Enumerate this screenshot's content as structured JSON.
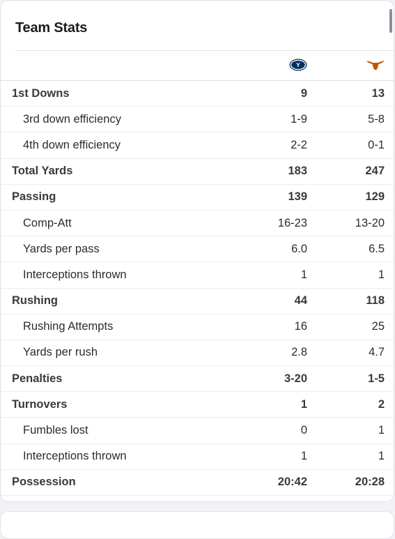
{
  "card": {
    "title": "Team Stats"
  },
  "teams": [
    {
      "name": "byu-logo-icon",
      "color": "#002E5D"
    },
    {
      "name": "texas-longhorn-icon",
      "color": "#BF5700"
    }
  ],
  "rows": [
    {
      "label": "1st Downs",
      "away": "9",
      "home": "13",
      "type": "main"
    },
    {
      "label": "3rd down efficiency",
      "away": "1-9",
      "home": "5-8",
      "type": "sub"
    },
    {
      "label": "4th down efficiency",
      "away": "2-2",
      "home": "0-1",
      "type": "sub"
    },
    {
      "label": "Total Yards",
      "away": "183",
      "home": "247",
      "type": "main"
    },
    {
      "label": "Passing",
      "away": "139",
      "home": "129",
      "type": "main"
    },
    {
      "label": "Comp-Att",
      "away": "16-23",
      "home": "13-20",
      "type": "sub"
    },
    {
      "label": "Yards per pass",
      "away": "6.0",
      "home": "6.5",
      "type": "sub"
    },
    {
      "label": "Interceptions thrown",
      "away": "1",
      "home": "1",
      "type": "sub"
    },
    {
      "label": "Rushing",
      "away": "44",
      "home": "118",
      "type": "main"
    },
    {
      "label": "Rushing Attempts",
      "away": "16",
      "home": "25",
      "type": "sub"
    },
    {
      "label": "Yards per rush",
      "away": "2.8",
      "home": "4.7",
      "type": "sub"
    },
    {
      "label": "Penalties",
      "away": "3-20",
      "home": "1-5",
      "type": "main"
    },
    {
      "label": "Turnovers",
      "away": "1",
      "home": "2",
      "type": "main"
    },
    {
      "label": "Fumbles lost",
      "away": "0",
      "home": "1",
      "type": "sub"
    },
    {
      "label": "Interceptions thrown",
      "away": "1",
      "home": "1",
      "type": "sub"
    },
    {
      "label": "Possession",
      "away": "20:42",
      "home": "20:28",
      "type": "main"
    }
  ]
}
